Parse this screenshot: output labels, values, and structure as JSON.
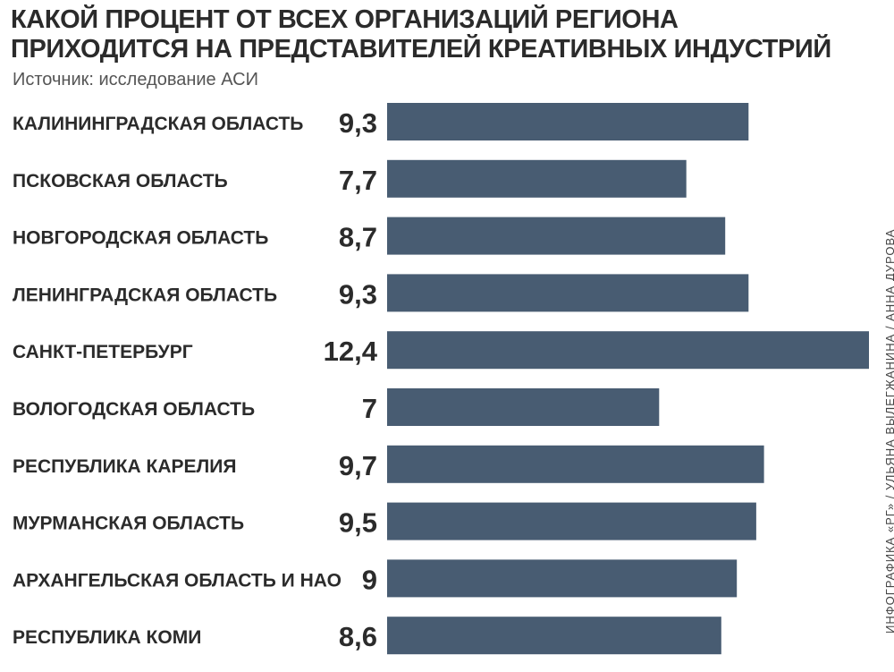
{
  "header": {
    "title_line1": "КАКОЙ ПРОЦЕНТ ОТ ВСЕХ ОРГАНИЗАЦИЙ РЕГИОНА",
    "title_line2": "ПРИХОДИТСЯ НА ПРЕДСТАВИТЕЛЕЙ КРЕАТИВНЫХ ИНДУСТРИЙ",
    "source": "Источник: исследование АСИ"
  },
  "credit": "ИНФОГРАФИКА «РГ» / УЛЬЯНА ВЫЛЕГЖАНИНА / АННА ДУРОВА",
  "colors": {
    "bar": "#485c72",
    "text": "#2b2b2b"
  },
  "chart_data": {
    "type": "bar",
    "orientation": "horizontal",
    "title": "КАКОЙ ПРОЦЕНТ ОТ ВСЕХ ОРГАНИЗАЦИЙ РЕГИОНА ПРИХОДИТСЯ НА ПРЕДСТАВИТЕЛЕЙ КРЕАТИВНЫХ ИНДУСТРИЙ",
    "subtitle": "Источник: исследование АСИ",
    "categories": [
      "КАЛИНИНГРАДСКАЯ ОБЛАСТЬ",
      "ПСКОВСКАЯ ОБЛАСТЬ",
      "НОВГОРОДСКАЯ ОБЛАСТЬ",
      "ЛЕНИНГРАДСКАЯ ОБЛАСТЬ",
      "САНКТ-ПЕТЕРБУРГ",
      "ВОЛОГОДСКАЯ ОБЛАСТЬ",
      "РЕСПУБЛИКА КАРЕЛИЯ",
      "МУРМАНСКАЯ ОБЛАСТЬ",
      "АРХАНГЕЛЬСКАЯ ОБЛАСТЬ И НАО",
      "РЕСПУБЛИКА КОМИ"
    ],
    "values": [
      9.3,
      7.7,
      8.7,
      9.3,
      12.4,
      7,
      9.7,
      9.5,
      9,
      8.6
    ],
    "value_labels": [
      "9,3",
      "7,7",
      "8,7",
      "9,3",
      "12,4",
      "7",
      "9,7",
      "9,5",
      "9",
      "8,6"
    ],
    "xlim": [
      0,
      12.4
    ],
    "grid": false,
    "legend": "none"
  }
}
